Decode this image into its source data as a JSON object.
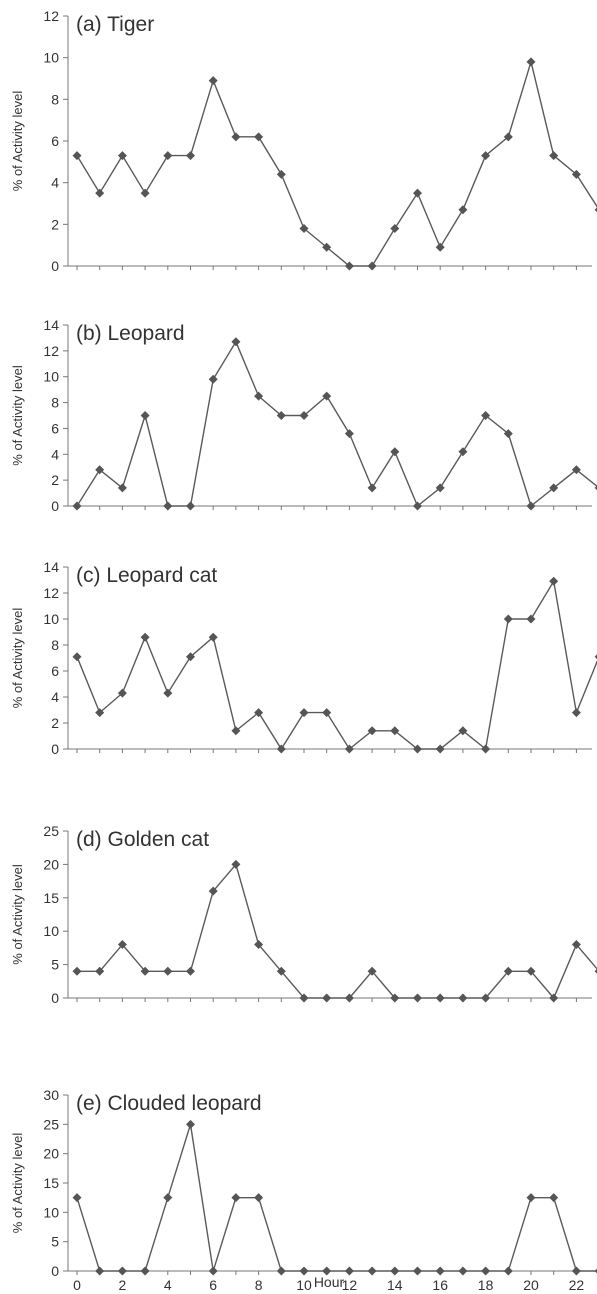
{
  "figure": {
    "xlabel": "Hour",
    "x_tick_labels": [
      "0",
      "2",
      "4",
      "6",
      "8",
      "10",
      "12",
      "14",
      "16",
      "18",
      "20",
      "22"
    ]
  },
  "colors": {
    "line": "#5a5a5a",
    "marker": "#555555",
    "axis": "#777777",
    "text": "#333333"
  },
  "chart_data": [
    {
      "type": "line",
      "title": "(a) Tiger",
      "ylabel": "% of Activity level",
      "x": [
        0,
        1,
        2,
        3,
        4,
        5,
        6,
        7,
        8,
        9,
        10,
        11,
        12,
        13,
        14,
        15,
        16,
        17,
        18,
        19,
        20,
        21,
        22,
        23
      ],
      "values": [
        5.3,
        3.5,
        5.3,
        3.5,
        5.3,
        5.3,
        8.9,
        6.2,
        6.2,
        4.4,
        1.8,
        0.9,
        0,
        0,
        1.8,
        3.5,
        0.9,
        2.7,
        5.3,
        6.2,
        9.8,
        5.3,
        4.4,
        2.7
      ],
      "ylim": [
        0,
        12
      ],
      "yticks": [
        "0",
        "2",
        "4",
        "6",
        "8",
        "10",
        "12"
      ]
    },
    {
      "type": "line",
      "title": "(b) Leopard",
      "ylabel": "% of Activity level",
      "x": [
        0,
        1,
        2,
        3,
        4,
        5,
        6,
        7,
        8,
        9,
        10,
        11,
        12,
        13,
        14,
        15,
        16,
        17,
        18,
        19,
        20,
        21,
        22,
        23
      ],
      "values": [
        0,
        2.8,
        1.4,
        7.0,
        0,
        0,
        9.8,
        12.7,
        8.5,
        7.0,
        7.0,
        8.5,
        5.6,
        1.4,
        4.2,
        0,
        1.4,
        4.2,
        7.0,
        5.6,
        0,
        1.4,
        2.8,
        1.4
      ],
      "ylim": [
        0,
        14
      ],
      "yticks": [
        "0",
        "2",
        "4",
        "6",
        "8",
        "10",
        "12",
        "14"
      ]
    },
    {
      "type": "line",
      "title": "(c) Leopard cat",
      "ylabel": "% of Activity level",
      "x": [
        0,
        1,
        2,
        3,
        4,
        5,
        6,
        7,
        8,
        9,
        10,
        11,
        12,
        13,
        14,
        15,
        16,
        17,
        18,
        19,
        20,
        21,
        22,
        23
      ],
      "values": [
        7.1,
        2.8,
        4.3,
        8.6,
        4.3,
        7.1,
        8.6,
        1.4,
        2.8,
        0,
        2.8,
        2.8,
        0,
        1.4,
        1.4,
        0,
        0,
        1.4,
        0,
        10.0,
        10.0,
        12.9,
        2.8,
        7.1
      ],
      "ylim": [
        0,
        14
      ],
      "yticks": [
        "0",
        "2",
        "4",
        "6",
        "8",
        "10",
        "12",
        "14"
      ]
    },
    {
      "type": "line",
      "title": "(d) Golden cat",
      "ylabel": "% of Activity level",
      "x": [
        0,
        1,
        2,
        3,
        4,
        5,
        6,
        7,
        8,
        9,
        10,
        11,
        12,
        13,
        14,
        15,
        16,
        17,
        18,
        19,
        20,
        21,
        22,
        23
      ],
      "values": [
        4,
        4,
        8,
        4,
        4,
        4,
        16,
        20,
        8,
        4,
        0,
        0,
        0,
        4,
        0,
        0,
        0,
        0,
        0,
        4,
        4,
        0,
        8,
        4
      ],
      "ylim": [
        0,
        25
      ],
      "yticks": [
        "0",
        "5",
        "10",
        "15",
        "20",
        "25"
      ]
    },
    {
      "type": "line",
      "title": "(e) Clouded leopard",
      "ylabel": "% of Activity level",
      "x": [
        0,
        1,
        2,
        3,
        4,
        5,
        6,
        7,
        8,
        9,
        10,
        11,
        12,
        13,
        14,
        15,
        16,
        17,
        18,
        19,
        20,
        21,
        22,
        23
      ],
      "values": [
        12.5,
        0,
        0,
        0,
        12.5,
        25,
        0,
        12.5,
        12.5,
        0,
        0,
        0,
        0,
        0,
        0,
        0,
        0,
        0,
        0,
        0,
        12.5,
        12.5,
        0,
        0
      ],
      "ylim": [
        0,
        30
      ],
      "yticks": [
        "0",
        "5",
        "10",
        "15",
        "20",
        "25",
        "30"
      ]
    }
  ]
}
